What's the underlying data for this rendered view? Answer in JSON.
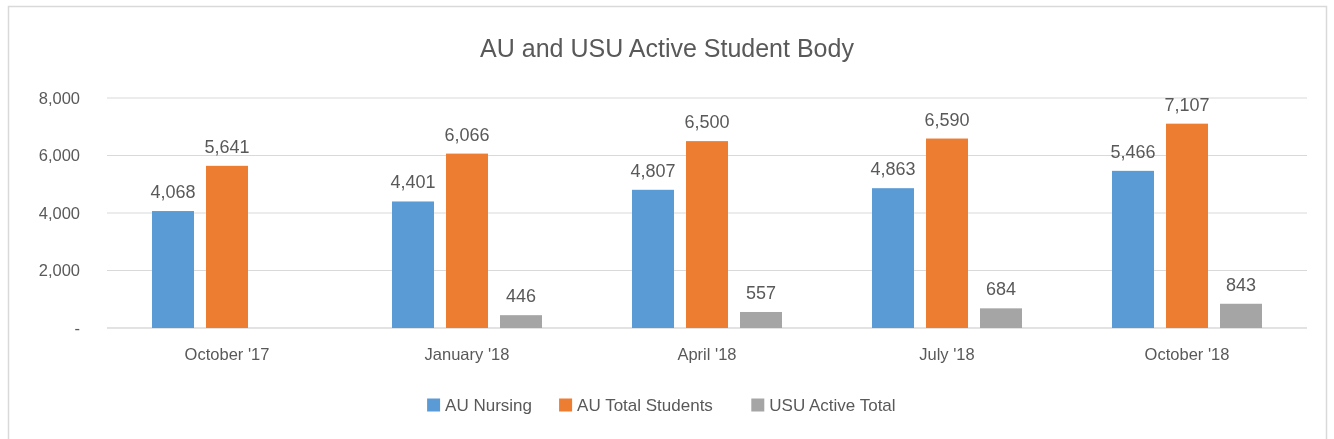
{
  "chart_data": {
    "type": "bar",
    "title": "AU and USU Active Student Body",
    "categories": [
      "October '17",
      "January '18",
      "April '18",
      "July '18",
      "October '18"
    ],
    "series": [
      {
        "name": "AU Nursing",
        "color": "#5b9bd5",
        "values": [
          4068,
          4401,
          4807,
          4863,
          5466
        ],
        "value_labels": [
          "4,068",
          "4,401",
          "4,807",
          "4,863",
          "5,466"
        ]
      },
      {
        "name": "AU Total Students",
        "color": "#ed7d31",
        "values": [
          5641,
          6066,
          6500,
          6590,
          7107
        ],
        "value_labels": [
          "5,641",
          "6,066",
          "6,500",
          "6,590",
          "7,107"
        ]
      },
      {
        "name": "USU Active Total",
        "color": "#a5a5a5",
        "values": [
          null,
          446,
          557,
          684,
          843
        ],
        "value_labels": [
          null,
          "446",
          "557",
          "684",
          "843"
        ]
      }
    ],
    "ylim": [
      0,
      8000
    ],
    "yticks": [
      {
        "value": 0,
        "label": "-"
      },
      {
        "value": 2000,
        "label": "2,000"
      },
      {
        "value": 4000,
        "label": "4,000"
      },
      {
        "value": 6000,
        "label": "6,000"
      },
      {
        "value": 8000,
        "label": "8,000"
      }
    ],
    "grid": "y",
    "legend": "bottom"
  }
}
